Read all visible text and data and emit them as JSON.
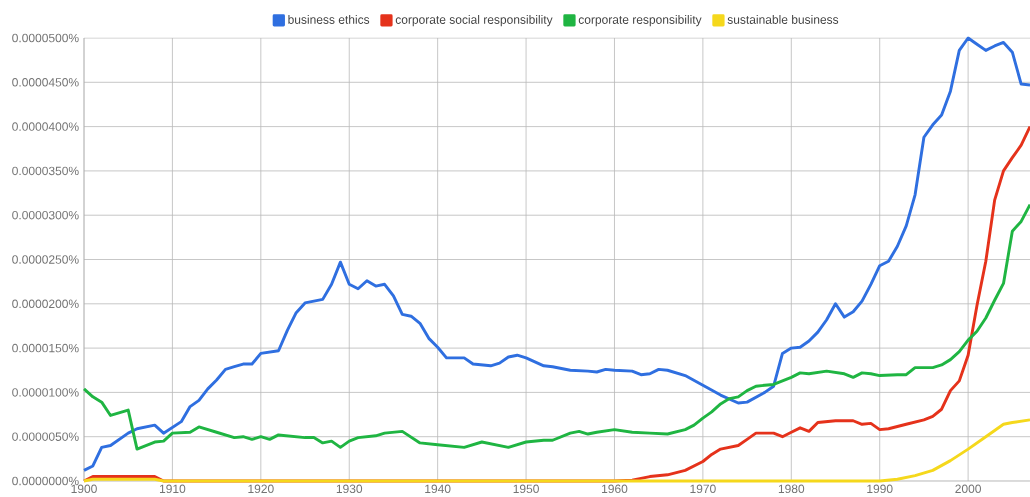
{
  "chart_data": {
    "type": "line",
    "legend": "top",
    "grid": true,
    "xlim": [
      1900,
      2007
    ],
    "xticks": [
      1900,
      1910,
      1920,
      1930,
      1940,
      1950,
      1960,
      1970,
      1980,
      1990,
      2000
    ],
    "ylim": [
      0,
      5e-05
    ],
    "yticks": [
      {
        "value": 0,
        "label": "0.0000000%"
      },
      {
        "value": 5e-06,
        "label": "0.0000050%"
      },
      {
        "value": 1e-05,
        "label": "0.0000100%"
      },
      {
        "value": 1.5e-05,
        "label": "0.0000150%"
      },
      {
        "value": 2e-05,
        "label": "0.0000200%"
      },
      {
        "value": 2.5e-05,
        "label": "0.0000250%"
      },
      {
        "value": 3e-05,
        "label": "0.0000300%"
      },
      {
        "value": 3.5e-05,
        "label": "0.0000350%"
      },
      {
        "value": 4e-05,
        "label": "0.0000400%"
      },
      {
        "value": 4.5e-05,
        "label": "0.0000450%"
      },
      {
        "value": 5e-05,
        "label": "0.0000500%"
      }
    ],
    "series": [
      {
        "name": "business ethics",
        "color": "#2f6fe0",
        "x": [
          1900,
          1901,
          1902,
          1903,
          1905,
          1906,
          1908,
          1909,
          1911,
          1912,
          1913,
          1914,
          1915,
          1916,
          1917,
          1918,
          1919,
          1920,
          1922,
          1923,
          1924,
          1925,
          1927,
          1928,
          1929,
          1930,
          1931,
          1932,
          1933,
          1934,
          1935,
          1936,
          1937,
          1938,
          1939,
          1940,
          1941,
          1943,
          1944,
          1946,
          1947,
          1948,
          1949,
          1950,
          1952,
          1953,
          1955,
          1957,
          1958,
          1959,
          1960,
          1962,
          1963,
          1964,
          1965,
          1966,
          1968,
          1970,
          1972,
          1974,
          1975,
          1977,
          1978,
          1979,
          1980,
          1981,
          1982,
          1983,
          1984,
          1985,
          1986,
          1987,
          1988,
          1989,
          1990,
          1991,
          1992,
          1993,
          1994,
          1995,
          1996,
          1997,
          1998,
          1999,
          2000,
          2001,
          2002,
          2003,
          2004,
          2005,
          2006,
          2007
        ],
        "values": [
          1.2e-06,
          1.7e-06,
          3.8e-06,
          4e-06,
          5.4e-06,
          5.9e-06,
          6.3e-06,
          5.4e-06,
          6.7e-06,
          8.4e-06,
          9.1e-06,
          1.04e-05,
          1.14e-05,
          1.26e-05,
          1.29e-05,
          1.32e-05,
          1.32e-05,
          1.44e-05,
          1.47e-05,
          1.7e-05,
          1.9e-05,
          2.01e-05,
          2.05e-05,
          2.22e-05,
          2.47e-05,
          2.22e-05,
          2.17e-05,
          2.26e-05,
          2.2e-05,
          2.22e-05,
          2.09e-05,
          1.88e-05,
          1.86e-05,
          1.78e-05,
          1.61e-05,
          1.51e-05,
          1.39e-05,
          1.39e-05,
          1.32e-05,
          1.3e-05,
          1.33e-05,
          1.4e-05,
          1.42e-05,
          1.39e-05,
          1.3e-05,
          1.29e-05,
          1.25e-05,
          1.24e-05,
          1.23e-05,
          1.26e-05,
          1.25e-05,
          1.24e-05,
          1.2e-05,
          1.21e-05,
          1.26e-05,
          1.25e-05,
          1.19e-05,
          1.08e-05,
          9.7e-06,
          8.8e-06,
          8.9e-06,
          1e-05,
          1.07e-05,
          1.44e-05,
          1.5e-05,
          1.51e-05,
          1.58e-05,
          1.68e-05,
          1.82e-05,
          2e-05,
          1.85e-05,
          1.91e-05,
          2.03e-05,
          2.22e-05,
          2.43e-05,
          2.48e-05,
          2.65e-05,
          2.88e-05,
          3.23e-05,
          3.88e-05,
          4.02e-05,
          4.13e-05,
          4.4e-05,
          4.86e-05,
          5e-05,
          4.93e-05,
          4.86e-05,
          4.91e-05,
          4.95e-05,
          4.84e-05,
          4.48e-05,
          4.47e-05
        ]
      },
      {
        "name": "corporate social responsibility",
        "color": "#e5321b",
        "x": [
          1900,
          1901,
          1908,
          1909,
          1960,
          1962,
          1964,
          1966,
          1968,
          1970,
          1971,
          1972,
          1974,
          1975,
          1976,
          1978,
          1979,
          1980,
          1981,
          1982,
          1983,
          1985,
          1987,
          1988,
          1989,
          1990,
          1991,
          1993,
          1995,
          1996,
          1997,
          1998,
          1999,
          2000,
          2001,
          2002,
          2003,
          2004,
          2005,
          2006,
          2007
        ],
        "values": [
          0,
          5e-07,
          5e-07,
          0,
          0,
          1e-07,
          5e-07,
          7e-07,
          1.2e-06,
          2.2e-06,
          3e-06,
          3.6e-06,
          4e-06,
          4.7e-06,
          5.4e-06,
          5.4e-06,
          5e-06,
          5.5e-06,
          6e-06,
          5.6e-06,
          6.6e-06,
          6.8e-06,
          6.8e-06,
          6.4e-06,
          6.5e-06,
          5.8e-06,
          5.9e-06,
          6.4e-06,
          6.9e-06,
          7.3e-06,
          8.1e-06,
          1.02e-05,
          1.13e-05,
          1.42e-05,
          1.98e-05,
          2.48e-05,
          3.17e-05,
          3.5e-05,
          3.65e-05,
          3.79e-05,
          4e-05
        ]
      },
      {
        "name": "corporate responsibility",
        "color": "#1fb542",
        "x": [
          1900,
          1901,
          1902,
          1903,
          1905,
          1906,
          1908,
          1909,
          1910,
          1912,
          1913,
          1915,
          1917,
          1918,
          1919,
          1920,
          1921,
          1922,
          1925,
          1926,
          1927,
          1928,
          1929,
          1930,
          1931,
          1933,
          1934,
          1936,
          1938,
          1940,
          1943,
          1945,
          1948,
          1950,
          1952,
          1953,
          1955,
          1956,
          1957,
          1958,
          1960,
          1962,
          1964,
          1966,
          1968,
          1969,
          1970,
          1971,
          1972,
          1973,
          1974,
          1975,
          1976,
          1977,
          1978,
          1979,
          1980,
          1981,
          1982,
          1984,
          1986,
          1987,
          1988,
          1989,
          1990,
          1992,
          1993,
          1994,
          1996,
          1997,
          1998,
          1999,
          2000,
          2001,
          2002,
          2003,
          2004,
          2005,
          2006,
          2007
        ],
        "values": [
          1.04e-05,
          9.5e-06,
          8.9e-06,
          7.4e-06,
          8e-06,
          3.6e-06,
          4.4e-06,
          4.5e-06,
          5.4e-06,
          5.5e-06,
          6.1e-06,
          5.5e-06,
          4.9e-06,
          5e-06,
          4.7e-06,
          5e-06,
          4.7e-06,
          5.2e-06,
          4.9e-06,
          4.9e-06,
          4.3e-06,
          4.5e-06,
          3.8e-06,
          4.5e-06,
          4.9e-06,
          5.1e-06,
          5.4e-06,
          5.6e-06,
          4.3e-06,
          4.1e-06,
          3.8e-06,
          4.4e-06,
          3.8e-06,
          4.4e-06,
          4.6e-06,
          4.6e-06,
          5.4e-06,
          5.6e-06,
          5.3e-06,
          5.5e-06,
          5.8e-06,
          5.5e-06,
          5.4e-06,
          5.3e-06,
          5.8e-06,
          6.3e-06,
          7.1e-06,
          7.8e-06,
          8.7e-06,
          9.3e-06,
          9.5e-06,
          1.02e-05,
          1.07e-05,
          1.08e-05,
          1.09e-05,
          1.13e-05,
          1.17e-05,
          1.22e-05,
          1.21e-05,
          1.24e-05,
          1.21e-05,
          1.17e-05,
          1.22e-05,
          1.21e-05,
          1.19e-05,
          1.2e-05,
          1.2e-05,
          1.28e-05,
          1.28e-05,
          1.31e-05,
          1.37e-05,
          1.46e-05,
          1.59e-05,
          1.69e-05,
          1.84e-05,
          2.04e-05,
          2.23e-05,
          2.82e-05,
          2.93e-05,
          3.12e-05
        ]
      },
      {
        "name": "sustainable business",
        "color": "#f5d81c",
        "x": [
          1900,
          1901,
          1908,
          1909,
          1990,
          1992,
          1994,
          1996,
          1998,
          2000,
          2002,
          2004,
          2005,
          2007
        ],
        "values": [
          0,
          2e-07,
          2e-07,
          0,
          0,
          2e-07,
          6e-07,
          1.2e-06,
          2.3e-06,
          3.6e-06,
          5e-06,
          6.4e-06,
          6.6e-06,
          6.9e-06
        ]
      }
    ]
  }
}
